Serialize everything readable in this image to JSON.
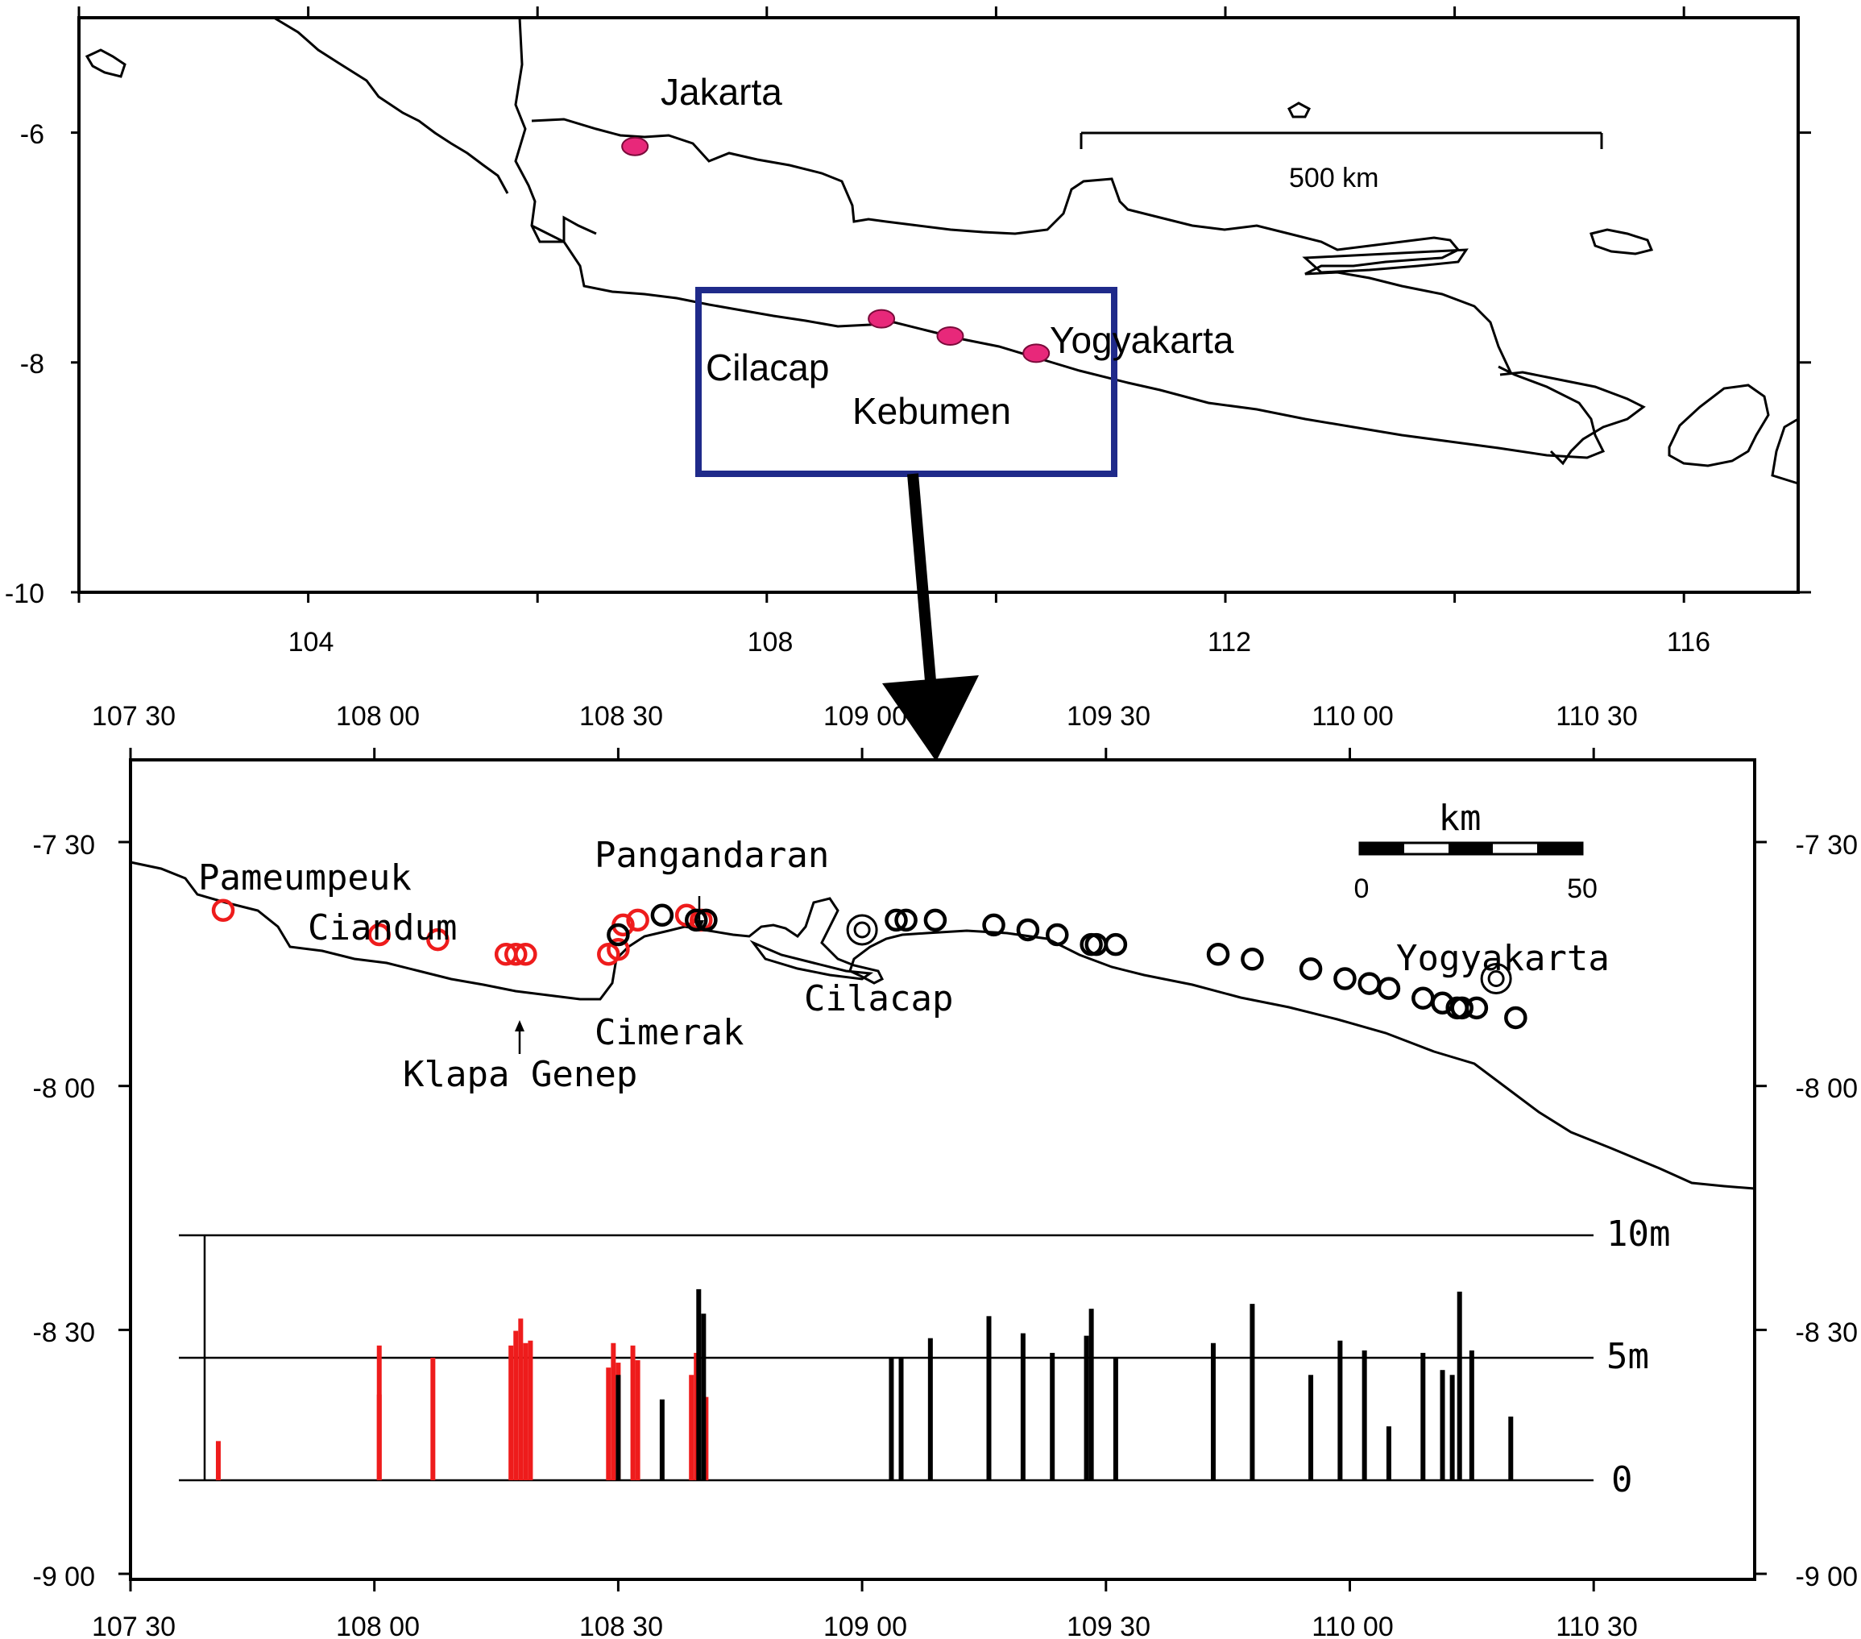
{
  "top_map": {
    "lat_ticks": [
      "-6",
      "-8",
      "-10"
    ],
    "lon_ticks": [
      "104",
      "108",
      "112",
      "116"
    ],
    "cities": [
      {
        "name": "Jakarta",
        "lon": 106.85,
        "lat": -6.12
      },
      {
        "name": "Cilacap",
        "lon": 109.0,
        "lat": -7.62
      },
      {
        "name": "Kebumen",
        "lon": 109.6,
        "lat": -7.77
      },
      {
        "name": "Yogyakarta",
        "lon": 110.35,
        "lat": -7.92
      }
    ],
    "scale_label": "500 km",
    "colors": {
      "city_marker": "#e8287a",
      "inset_box": "#1f2a8a"
    }
  },
  "bottom_map": {
    "lat_ticks": [
      "-7 30",
      "-8 00",
      "-8 30",
      "-9 00"
    ],
    "lon_ticks": [
      "107 30",
      "108 00",
      "108 30",
      "109 00",
      "109 30",
      "110 00",
      "110 30"
    ],
    "place_labels": [
      "Pameumpeuk",
      "Ciandum",
      "Pangandaran",
      "Cilacap",
      "Cimerak",
      "Klapa Genep",
      "Yogyakarta"
    ],
    "scale": {
      "unit": "km",
      "min": "0",
      "max": "50"
    },
    "height_axis": [
      "10m",
      "5m",
      "0"
    ],
    "colors": {
      "red_series": "#ee1c1c",
      "black_series": "#000000"
    }
  },
  "chart_data": {
    "type": "bar",
    "title": "",
    "xlabel": "",
    "ylabel": "",
    "ylim": [
      0,
      10
    ],
    "series": [
      {
        "color": "red",
        "values": [
          {
            "lon": 107.68,
            "h": 1.6
          },
          {
            "lon": 108.01,
            "h": 5.5
          },
          {
            "lon": 108.01,
            "h": 3.5
          },
          {
            "lon": 108.12,
            "h": 5.0
          },
          {
            "lon": 108.28,
            "h": 5.5
          },
          {
            "lon": 108.29,
            "h": 6.1
          },
          {
            "lon": 108.3,
            "h": 6.6
          },
          {
            "lon": 108.31,
            "h": 5.6
          },
          {
            "lon": 108.32,
            "h": 5.7
          },
          {
            "lon": 108.48,
            "h": 4.6
          },
          {
            "lon": 108.49,
            "h": 5.6
          },
          {
            "lon": 108.5,
            "h": 4.8
          },
          {
            "lon": 108.53,
            "h": 5.5
          },
          {
            "lon": 108.54,
            "h": 4.9
          },
          {
            "lon": 108.65,
            "h": 4.3
          },
          {
            "lon": 108.66,
            "h": 5.2
          },
          {
            "lon": 108.68,
            "h": 3.4
          }
        ]
      },
      {
        "color": "black",
        "values": [
          {
            "lon": 108.5,
            "h": 4.3
          },
          {
            "lon": 108.59,
            "h": 3.3
          },
          {
            "lon": 108.665,
            "h": 7.8
          },
          {
            "lon": 108.675,
            "h": 6.8
          },
          {
            "lon": 109.06,
            "h": 5.0
          },
          {
            "lon": 109.08,
            "h": 5.0
          },
          {
            "lon": 109.14,
            "h": 5.8
          },
          {
            "lon": 109.26,
            "h": 6.7
          },
          {
            "lon": 109.33,
            "h": 6.0
          },
          {
            "lon": 109.39,
            "h": 5.2
          },
          {
            "lon": 109.46,
            "h": 5.9
          },
          {
            "lon": 109.47,
            "h": 7.0
          },
          {
            "lon": 109.52,
            "h": 5.0
          },
          {
            "lon": 109.72,
            "h": 5.6
          },
          {
            "lon": 109.8,
            "h": 7.2
          },
          {
            "lon": 109.92,
            "h": 4.3
          },
          {
            "lon": 109.98,
            "h": 5.7
          },
          {
            "lon": 110.03,
            "h": 5.3
          },
          {
            "lon": 110.08,
            "h": 2.2
          },
          {
            "lon": 110.15,
            "h": 5.2
          },
          {
            "lon": 110.19,
            "h": 4.5
          },
          {
            "lon": 110.21,
            "h": 4.3
          },
          {
            "lon": 110.225,
            "h": 7.7
          },
          {
            "lon": 110.25,
            "h": 5.3
          },
          {
            "lon": 110.33,
            "h": 2.6
          }
        ]
      }
    ]
  },
  "survey_points": {
    "red": [
      {
        "lon": 107.69,
        "lat": -7.64
      },
      {
        "lon": 108.01,
        "lat": -7.69
      },
      {
        "lon": 108.13,
        "lat": -7.7
      },
      {
        "lon": 108.27,
        "lat": -7.73
      },
      {
        "lon": 108.29,
        "lat": -7.73
      },
      {
        "lon": 108.31,
        "lat": -7.73
      },
      {
        "lon": 108.48,
        "lat": -7.73
      },
      {
        "lon": 108.5,
        "lat": -7.72
      },
      {
        "lon": 108.51,
        "lat": -7.67
      },
      {
        "lon": 108.54,
        "lat": -7.66
      },
      {
        "lon": 108.64,
        "lat": -7.65
      },
      {
        "lon": 108.67,
        "lat": -7.66
      }
    ],
    "black": [
      {
        "lon": 108.5,
        "lat": -7.69
      },
      {
        "lon": 108.59,
        "lat": -7.65
      },
      {
        "lon": 108.66,
        "lat": -7.66
      },
      {
        "lon": 108.68,
        "lat": -7.66
      },
      {
        "lon": 109.07,
        "lat": -7.66
      },
      {
        "lon": 109.09,
        "lat": -7.66
      },
      {
        "lon": 109.15,
        "lat": -7.66
      },
      {
        "lon": 109.27,
        "lat": -7.67
      },
      {
        "lon": 109.34,
        "lat": -7.68
      },
      {
        "lon": 109.4,
        "lat": -7.69
      },
      {
        "lon": 109.47,
        "lat": -7.71
      },
      {
        "lon": 109.48,
        "lat": -7.71
      },
      {
        "lon": 109.52,
        "lat": -7.71
      },
      {
        "lon": 109.73,
        "lat": -7.73
      },
      {
        "lon": 109.8,
        "lat": -7.74
      },
      {
        "lon": 109.92,
        "lat": -7.76
      },
      {
        "lon": 109.99,
        "lat": -7.78
      },
      {
        "lon": 110.04,
        "lat": -7.79
      },
      {
        "lon": 110.08,
        "lat": -7.8
      },
      {
        "lon": 110.15,
        "lat": -7.82
      },
      {
        "lon": 110.19,
        "lat": -7.83
      },
      {
        "lon": 110.22,
        "lat": -7.84
      },
      {
        "lon": 110.23,
        "lat": -7.84
      },
      {
        "lon": 110.26,
        "lat": -7.84
      },
      {
        "lon": 110.34,
        "lat": -7.86
      }
    ],
    "double_circles": [
      {
        "lon": 109.0,
        "lat": -7.68
      },
      {
        "lon": 110.3,
        "lat": -7.78
      }
    ]
  }
}
